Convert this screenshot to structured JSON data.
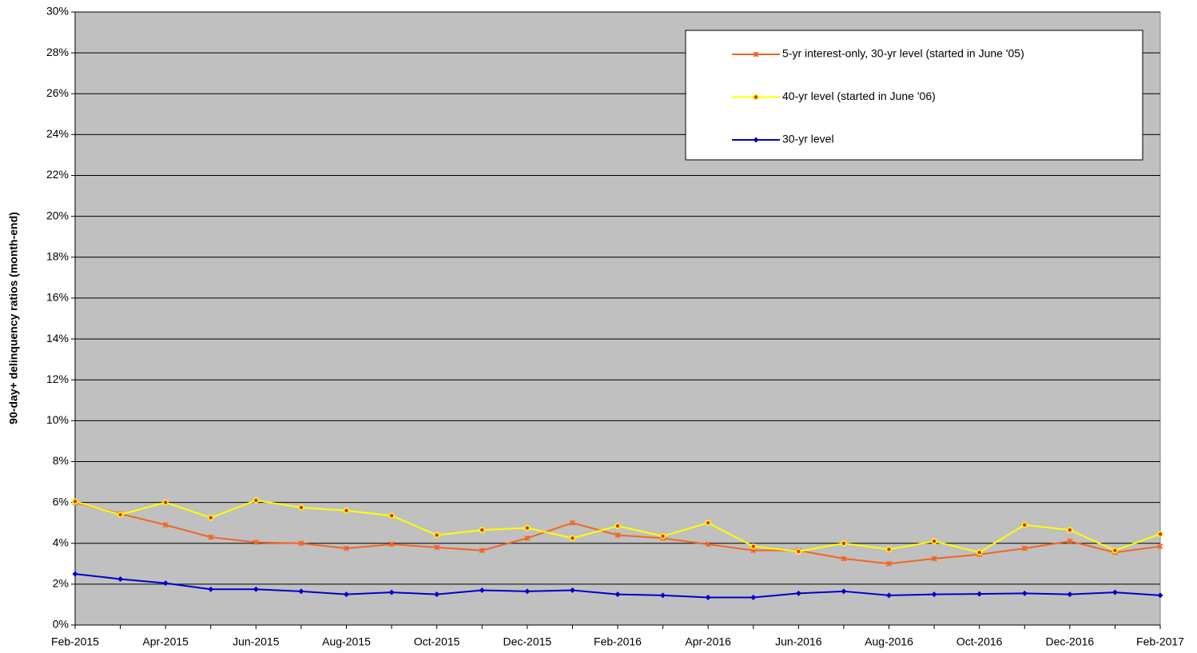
{
  "chart_data": {
    "type": "line",
    "y_label": "90-day+ delinquency ratios (month-end)",
    "categories": [
      "Feb-2015",
      null,
      "Apr-2015",
      null,
      "Jun-2015",
      null,
      "Aug-2015",
      null,
      "Oct-2015",
      null,
      "Dec-2015",
      null,
      "Feb-2016",
      null,
      "Apr-2016",
      null,
      "Jun-2016",
      null,
      "Aug-2016",
      null,
      "Oct-2016",
      null,
      "Dec-2016",
      null,
      "Feb-2017"
    ],
    "series": [
      {
        "name": "5-yr interest-only, 30-yr level (started in June '05)",
        "color": "#f26522",
        "marker": "x",
        "values": [
          6.0,
          5.45,
          4.9,
          4.3,
          4.05,
          4.0,
          3.75,
          3.95,
          3.8,
          3.65,
          4.25,
          5.0,
          4.4,
          4.25,
          3.95,
          3.65,
          3.65,
          3.25,
          3.0,
          3.25,
          3.45,
          3.75,
          4.1,
          3.55,
          3.85
        ]
      },
      {
        "name": "40-yr level (started in June '06)",
        "color": "#ffff00",
        "marker": "circle",
        "values": [
          6.05,
          5.4,
          6.0,
          5.25,
          6.1,
          5.75,
          5.6,
          5.35,
          4.4,
          4.65,
          4.75,
          4.25,
          4.85,
          4.35,
          5.0,
          3.85,
          3.6,
          4.0,
          3.7,
          4.1,
          3.55,
          4.9,
          4.65,
          3.65,
          4.45
        ]
      },
      {
        "name": "30-yr level",
        "color": "#0000cc",
        "marker": "diamond",
        "values": [
          2.5,
          2.25,
          2.05,
          1.75,
          1.75,
          1.65,
          1.5,
          1.6,
          1.5,
          1.7,
          1.65,
          1.7,
          1.5,
          1.45,
          1.35,
          1.35,
          1.55,
          1.65,
          1.45,
          1.5,
          1.52,
          1.55,
          1.5,
          1.6,
          1.45
        ]
      }
    ],
    "ylim": [
      0,
      30
    ],
    "yticks": [
      {
        "value": 0,
        "label": "0%"
      },
      {
        "value": 2,
        "label": "2%"
      },
      {
        "value": 4,
        "label": "4%"
      },
      {
        "value": 6,
        "label": "6%"
      },
      {
        "value": 8,
        "label": "8%"
      },
      {
        "value": 10,
        "label": "10%"
      },
      {
        "value": 12,
        "label": "12%"
      },
      {
        "value": 14,
        "label": "14%"
      },
      {
        "value": 16,
        "label": "16%"
      },
      {
        "value": 18,
        "label": "18%"
      },
      {
        "value": 20,
        "label": "20%"
      },
      {
        "value": 22,
        "label": "22%"
      },
      {
        "value": 24,
        "label": "24%"
      },
      {
        "value": 26,
        "label": "26%"
      },
      {
        "value": 28,
        "label": "28%"
      },
      {
        "value": 30,
        "label": "30%"
      }
    ],
    "grid": true,
    "legend": "upper right",
    "background": "#c0c0c0"
  }
}
